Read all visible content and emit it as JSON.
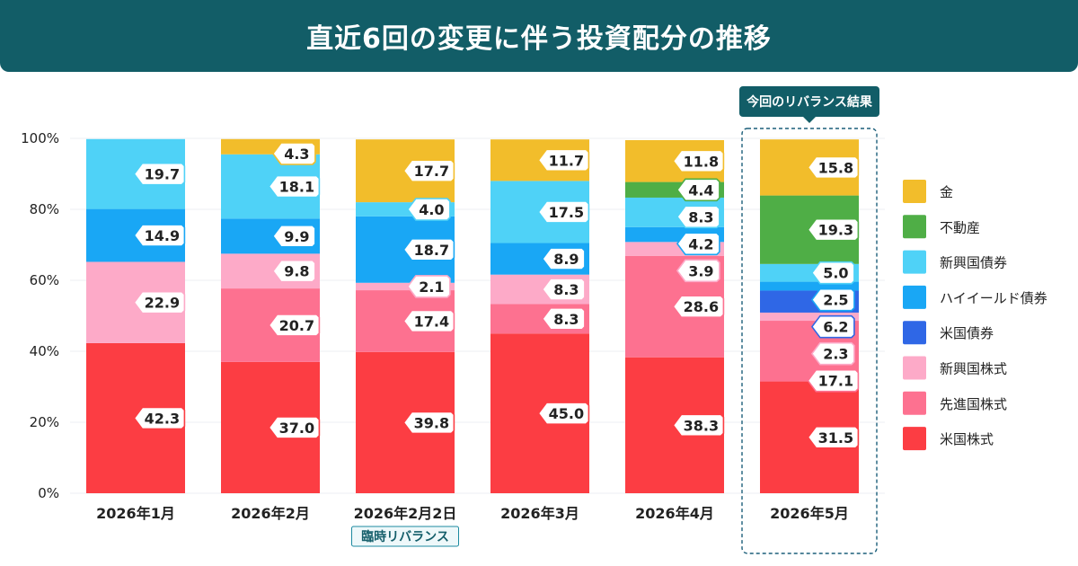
{
  "header": {
    "title": "直近6回の変更に伴う投資配分の推移"
  },
  "colors": {
    "header_bg": "#125d67",
    "金": "#f2bd2b",
    "不動産": "#4fae46",
    "新興国債券": "#4fd2f7",
    "ハイイールド債券": "#19a7f5",
    "米国債券": "#2f67e6",
    "新興国株式": "#fdaac8",
    "先進国株式": "#fd7190",
    "米国株式": "#fc3d43"
  },
  "chart_data": {
    "type": "bar",
    "stacked": true,
    "title": "直近6回の変更に伴う投資配分の推移",
    "categories": [
      "2026年1月",
      "2026年2月",
      "2026年2月2日",
      "2026年3月",
      "2026年4月",
      "2026年5月"
    ],
    "category_tags": {
      "2": "臨時リバランス"
    },
    "highlight": {
      "index": 5,
      "label": "今回のリバランス結果"
    },
    "ylim": [
      0,
      100
    ],
    "y_ticks": [
      "0%",
      "20%",
      "40%",
      "60%",
      "80%",
      "100%"
    ],
    "grid": true,
    "legend_position": "right",
    "series": [
      {
        "name": "米国株式",
        "values": [
          42.3,
          37.0,
          39.8,
          45.0,
          38.3,
          31.5
        ]
      },
      {
        "name": "先進国株式",
        "values": [
          0,
          20.7,
          17.4,
          8.3,
          28.6,
          17.1
        ]
      },
      {
        "name": "新興国株式",
        "values": [
          22.9,
          9.8,
          2.1,
          8.3,
          3.9,
          2.3
        ]
      },
      {
        "name": "米国債券",
        "values": [
          0,
          0,
          0,
          0,
          0,
          6.2
        ]
      },
      {
        "name": "ハイイールド債券",
        "values": [
          14.9,
          9.9,
          18.7,
          8.9,
          4.2,
          2.5
        ]
      },
      {
        "name": "新興国債券",
        "values": [
          19.7,
          18.1,
          4.0,
          17.5,
          8.3,
          5.0
        ]
      },
      {
        "name": "不動産",
        "values": [
          0,
          0,
          0,
          0,
          4.4,
          19.3
        ]
      },
      {
        "name": "金",
        "values": [
          0,
          4.3,
          17.7,
          11.7,
          11.8,
          15.8
        ]
      }
    ],
    "data_labels": [
      [
        "42.3",
        "",
        "22.9",
        "",
        "14.9",
        "19.7",
        "",
        ""
      ],
      [
        "37.0",
        "20.7",
        "9.8",
        "",
        "9.9",
        "18.1",
        "",
        "4.3"
      ],
      [
        "39.8",
        "17.4",
        "2.1",
        "",
        "18.7",
        "4.0",
        "",
        "17.7"
      ],
      [
        "45.0",
        "8.3",
        "8.3",
        "",
        "8.9",
        "17.5",
        "",
        "11.7"
      ],
      [
        "38.3",
        "28.6",
        "3.9",
        "",
        "4.2",
        "8.3",
        "4.4",
        "11.8"
      ],
      [
        "31.5",
        "17.1",
        "2.3",
        "6.2",
        "2.5",
        "5.0",
        "19.3",
        "15.8"
      ]
    ],
    "legend": [
      "金",
      "不動産",
      "新興国債券",
      "ハイイールド債券",
      "米国債券",
      "新興国株式",
      "先進国株式",
      "米国株式"
    ]
  }
}
